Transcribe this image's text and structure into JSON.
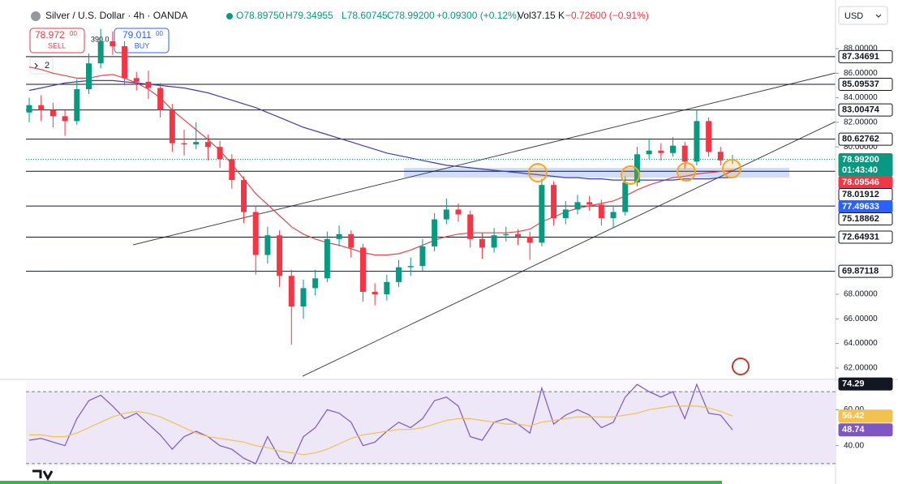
{
  "header": {
    "title": "Silver / U.S. Dollar · 4h · OANDA",
    "open": "O78.89750",
    "high": "H79.34955",
    "low": "L78.60745",
    "close": "C78.99200",
    "change": "+0.09300 (+0.12%)",
    "volume": "Vol37.15 K",
    "vol_change": "−0.72600 (−0.91%)"
  },
  "trade": {
    "sell_price": "78.972",
    "sell_sup": "00",
    "sell": "SELL",
    "buy_price": "79.011",
    "buy_sup": "00",
    "buy": "BUY"
  },
  "drawings": "2",
  "currency": "USD",
  "chart_data": [
    {
      "type": "candlestick",
      "open": [
        82.8,
        83.4,
        83.0,
        82.5,
        82.1,
        84.7,
        86.8,
        88.6,
        88.2,
        85.6,
        85.3,
        84.8,
        83.0,
        80.3,
        80.2,
        80.4,
        80.0,
        79.0,
        77.3,
        74.7,
        71.2,
        72.8,
        69.5,
        67.0,
        68.5,
        69.3,
        72.5,
        72.9,
        71.8,
        68.2,
        68.0,
        69.0,
        70.2,
        70.3,
        71.9,
        74.1,
        74.9,
        74.5,
        72.5,
        71.8,
        72.8,
        72.9,
        72.7,
        72.2,
        76.9,
        74.2,
        74.9,
        75.5,
        75.3,
        74.2,
        74.7,
        77.1,
        79.4,
        79.7,
        79.5,
        80.1,
        78.8,
        82.1,
        79.6,
        78.8975
      ],
      "high": [
        84.0,
        84.2,
        83.6,
        83.0,
        85.5,
        87.6,
        89.6,
        89.4,
        88.6,
        86.1,
        86.2,
        85.2,
        83.5,
        81.4,
        82.0,
        81.0,
        80.5,
        79.4,
        77.6,
        75.2,
        73.5,
        73.2,
        70.0,
        69.2,
        70.0,
        73.1,
        73.6,
        73.2,
        72.1,
        68.9,
        69.6,
        70.8,
        71.0,
        72.5,
        74.6,
        75.8,
        75.4,
        74.8,
        73.0,
        73.4,
        73.5,
        73.3,
        73.1,
        77.4,
        77.2,
        75.6,
        76.1,
        76.0,
        75.7,
        75.2,
        77.6,
        80.0,
        80.7,
        80.3,
        80.8,
        80.4,
        83.0,
        82.4,
        80.0,
        79.34955
      ],
      "low": [
        82.0,
        82.1,
        81.6,
        80.9,
        81.8,
        84.3,
        86.4,
        87.5,
        85.0,
        84.6,
        83.9,
        82.4,
        79.6,
        79.3,
        79.8,
        78.9,
        78.3,
        76.6,
        73.8,
        69.6,
        70.5,
        68.6,
        63.9,
        66.0,
        67.9,
        69.0,
        71.9,
        71.0,
        67.4,
        67.1,
        67.5,
        68.6,
        69.5,
        69.9,
        71.5,
        73.7,
        73.9,
        71.8,
        70.9,
        71.4,
        72.3,
        72.0,
        70.8,
        71.9,
        73.6,
        73.7,
        74.5,
        74.8,
        73.6,
        73.4,
        74.4,
        76.8,
        79.0,
        78.9,
        79.2,
        78.2,
        78.5,
        79.2,
        78.5,
        78.60745
      ],
      "close": [
        83.4,
        83.0,
        82.5,
        82.1,
        84.7,
        86.8,
        88.6,
        88.2,
        85.6,
        85.3,
        84.8,
        83.0,
        80.3,
        80.2,
        80.4,
        80.0,
        79.0,
        77.3,
        74.7,
        71.2,
        72.8,
        69.5,
        67.0,
        68.5,
        69.3,
        72.5,
        72.9,
        71.8,
        68.2,
        68.0,
        69.0,
        70.2,
        70.3,
        71.9,
        74.1,
        74.9,
        74.5,
        72.5,
        71.8,
        72.8,
        72.9,
        72.7,
        72.2,
        76.9,
        74.2,
        74.9,
        75.5,
        75.3,
        74.2,
        74.7,
        77.1,
        79.4,
        79.7,
        79.5,
        80.1,
        78.8,
        82.1,
        79.6,
        78.9,
        78.992
      ],
      "up_color": "#089981",
      "down_color": "#f23645",
      "series": [
        {
          "color": "#e0474c",
          "values": [
            86.5,
            86.3,
            86.0,
            85.8,
            85.6,
            85.6,
            85.8,
            85.9,
            85.6,
            85.2,
            84.7,
            84.0,
            83.0,
            82.2,
            81.4,
            80.6,
            79.7,
            78.6,
            77.4,
            76.2,
            75.3,
            74.4,
            73.5,
            72.9,
            72.5,
            72.2,
            72.0,
            71.7,
            71.4,
            71.2,
            71.2,
            71.3,
            71.6,
            72.0,
            72.4,
            72.7,
            72.9,
            73.0,
            73.0,
            73.0,
            73.0,
            73.1,
            73.3,
            73.9,
            74.3,
            74.7,
            75.0,
            75.2,
            75.4,
            75.6,
            76.0,
            76.5,
            76.9,
            77.2,
            77.5,
            77.6,
            77.8,
            77.9,
            78.0,
            78.09546
          ]
        },
        {
          "color": "#3f3fb0",
          "values": [
            84.6,
            84.8,
            85.0,
            85.2,
            85.3,
            85.4,
            85.4,
            85.4,
            85.3,
            85.2,
            85.1,
            85.0,
            84.9,
            84.8,
            84.6,
            84.4,
            84.1,
            83.8,
            83.5,
            83.2,
            82.8,
            82.4,
            82.0,
            81.6,
            81.3,
            81.0,
            80.7,
            80.4,
            80.1,
            79.8,
            79.5,
            79.3,
            79.1,
            78.9,
            78.7,
            78.5,
            78.4,
            78.3,
            78.2,
            78.1,
            78.0,
            77.9,
            77.8,
            77.7,
            77.6,
            77.5,
            77.5,
            77.4,
            77.4,
            77.3,
            77.3,
            77.3,
            77.3,
            77.3,
            77.3,
            77.4,
            77.4,
            77.4,
            77.5,
            77.49633
          ]
        }
      ],
      "ylim": [
        61.2,
        91.3
      ],
      "yticks": [
        {
          "value": 88,
          "label": "88.00000"
        },
        {
          "value": 86,
          "label": "86.00000"
        },
        {
          "value": 84,
          "label": "84.00000"
        },
        {
          "value": 82,
          "label": "82.00000"
        },
        {
          "value": 80,
          "label": "80.00000"
        },
        {
          "value": 68,
          "label": "68.00000"
        },
        {
          "value": 66,
          "label": "66.00000"
        },
        {
          "value": 64,
          "label": "64.00000"
        },
        {
          "value": 62,
          "label": "62.00000"
        }
      ],
      "levels": [
        87.34691,
        85.09537,
        83.00474,
        80.62762,
        78.01912,
        75.18862,
        72.64931,
        69.87118
      ],
      "tags": [
        {
          "value": 78.09546,
          "color": "#f23645"
        },
        {
          "value": 77.49633,
          "color": "#2962ff"
        }
      ],
      "last_price": {
        "value": 78.992,
        "label": "78.99200",
        "countdown": "01:43:40",
        "color": "#089981"
      },
      "annotation": "390.0"
    },
    {
      "type": "line",
      "series": [
        {
          "color": "#7e57c2",
          "values": [
            43,
            44,
            42,
            40,
            55,
            65,
            68,
            62,
            55,
            58,
            52,
            46,
            38,
            45,
            48,
            45,
            40,
            38,
            33,
            30,
            45,
            33,
            30,
            45,
            50,
            60,
            58,
            53,
            40,
            42,
            48,
            53,
            50,
            55,
            65,
            67,
            62,
            45,
            43,
            53,
            55,
            52,
            47,
            72,
            52,
            57,
            60,
            57,
            50,
            53,
            67,
            74,
            70,
            67,
            70,
            55,
            74,
            58,
            57,
            48.74
          ]
        },
        {
          "color": "#f2c14e",
          "values": [
            46,
            46,
            45,
            45,
            47,
            50,
            53,
            56,
            58,
            59,
            58,
            56,
            53,
            50,
            47,
            45,
            44,
            43,
            42,
            40,
            39,
            37,
            36,
            35,
            36,
            38,
            41,
            44,
            46,
            47,
            48,
            49,
            49,
            50,
            52,
            54,
            55,
            55,
            54,
            53,
            52,
            52,
            51,
            53,
            54,
            55,
            56,
            56,
            56,
            56,
            57,
            58,
            60,
            61,
            62,
            62,
            62,
            61,
            59,
            56.42
          ]
        }
      ],
      "ylim": [
        28.6,
        75.9
      ],
      "yticks": [
        {
          "value": 60,
          "label": "60.00"
        },
        {
          "value": 40,
          "label": "40.00"
        }
      ],
      "band": [
        30,
        70
      ],
      "tags": [
        {
          "value": 74.29,
          "color": "#131722"
        },
        {
          "value": 56.42,
          "color": "#f2c14e"
        },
        {
          "value": 48.74,
          "color": "#7e57c2"
        }
      ]
    }
  ]
}
